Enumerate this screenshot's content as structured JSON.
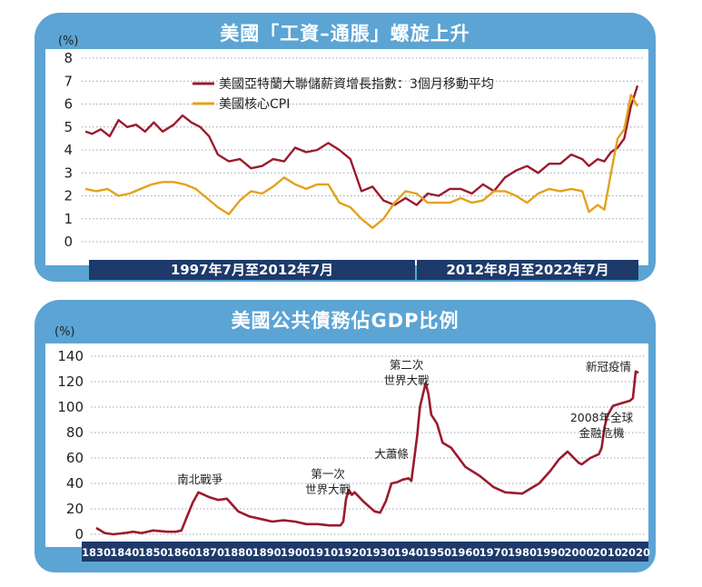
{
  "chart_data": [
    {
      "type": "line",
      "title": "美國「工資–通脹」螺旋上升",
      "ylabel": "(%)",
      "ylim": [
        0,
        8
      ],
      "yticks": [
        0,
        1,
        2,
        3,
        4,
        5,
        6,
        7,
        8
      ],
      "period_labels": [
        "1997年7月至2012年7月",
        "2012年8月至2022年7月"
      ],
      "legend_placement": "top-center",
      "series": [
        {
          "name": "美國亞特蘭大聯儲薪資增長指數：3個月移動平均",
          "color": "#9b1b2c",
          "x": [
            1997.5,
            1997.8,
            1998.2,
            1998.6,
            1999.0,
            1999.4,
            1999.8,
            2000.2,
            2000.6,
            2001.0,
            2001.5,
            2001.9,
            2002.3,
            2002.7,
            2003.1,
            2003.5,
            2004.0,
            2004.5,
            2005.0,
            2005.5,
            2006.0,
            2006.5,
            2007.0,
            2007.5,
            2008.0,
            2008.5,
            2009.0,
            2009.5,
            2010.0,
            2010.5,
            2011.0,
            2011.5,
            2012.0,
            2012.5,
            2013.0,
            2013.5,
            2014.0,
            2014.5,
            2015.0,
            2015.5,
            2016.0,
            2016.5,
            2017.0,
            2017.5,
            2018.0,
            2018.5,
            2019.0,
            2019.5,
            2020.0,
            2020.3,
            2020.7,
            2021.0,
            2021.3,
            2021.6,
            2021.9,
            2022.2,
            2022.5
          ],
          "y": [
            4.8,
            4.7,
            4.9,
            4.6,
            5.3,
            5.0,
            5.1,
            4.8,
            5.2,
            4.8,
            5.1,
            5.5,
            5.2,
            5.0,
            4.6,
            3.8,
            3.5,
            3.6,
            3.2,
            3.3,
            3.6,
            3.5,
            4.1,
            3.9,
            4.0,
            4.3,
            4.0,
            3.6,
            2.2,
            2.4,
            1.8,
            1.6,
            1.9,
            1.6,
            2.1,
            2.0,
            2.3,
            2.3,
            2.1,
            2.5,
            2.2,
            2.8,
            3.1,
            3.3,
            3.0,
            3.4,
            3.4,
            3.8,
            3.6,
            3.3,
            3.6,
            3.5,
            3.9,
            4.1,
            4.5,
            5.9,
            6.8
          ]
        },
        {
          "name": "美國核心CPI",
          "color": "#e3a21b",
          "x": [
            1997.5,
            1998.0,
            1998.5,
            1999.0,
            1999.5,
            2000.0,
            2000.5,
            2001.0,
            2001.5,
            2002.0,
            2002.5,
            2003.0,
            2003.5,
            2004.0,
            2004.5,
            2005.0,
            2005.5,
            2006.0,
            2006.5,
            2007.0,
            2007.5,
            2008.0,
            2008.5,
            2009.0,
            2009.5,
            2010.0,
            2010.5,
            2011.0,
            2011.5,
            2012.0,
            2012.5,
            2013.0,
            2013.5,
            2014.0,
            2014.5,
            2015.0,
            2015.5,
            2016.0,
            2016.5,
            2017.0,
            2017.5,
            2018.0,
            2018.5,
            2019.0,
            2019.5,
            2020.0,
            2020.3,
            2020.7,
            2021.0,
            2021.3,
            2021.6,
            2021.9,
            2022.2,
            2022.5
          ],
          "y": [
            2.3,
            2.2,
            2.3,
            2.0,
            2.1,
            2.3,
            2.5,
            2.6,
            2.6,
            2.5,
            2.3,
            1.9,
            1.5,
            1.2,
            1.8,
            2.2,
            2.1,
            2.4,
            2.8,
            2.5,
            2.3,
            2.5,
            2.5,
            1.7,
            1.5,
            1.0,
            0.6,
            1.0,
            1.7,
            2.2,
            2.1,
            1.7,
            1.7,
            1.7,
            1.9,
            1.7,
            1.8,
            2.2,
            2.2,
            2.0,
            1.7,
            2.1,
            2.3,
            2.2,
            2.3,
            2.2,
            1.3,
            1.6,
            1.4,
            3.0,
            4.5,
            4.9,
            6.4,
            5.9
          ]
        }
      ]
    },
    {
      "type": "line",
      "title": "美國公共債務佔GDP比例",
      "ylabel": "(%)",
      "ylim": [
        0,
        140
      ],
      "yticks": [
        0,
        20,
        40,
        60,
        80,
        100,
        120,
        140
      ],
      "xlim": [
        1830,
        2020
      ],
      "xticks": [
        "1830",
        "1840",
        "1850",
        "1860",
        "1870",
        "1880",
        "1890",
        "1900",
        "1910",
        "1920",
        "1930",
        "1940",
        "1950",
        "1960",
        "1970",
        "1980",
        "1990",
        "2000",
        "2010",
        "2020"
      ],
      "annotations": [
        {
          "label": "南北戰爭",
          "x": 1864
        },
        {
          "label": "第一次\n世界大戰",
          "x": 1918
        },
        {
          "label": "大蕭條",
          "x": 1934
        },
        {
          "label": "第二次\n世界大戰",
          "x": 1946
        },
        {
          "label": "2008年全球\n金融危機",
          "x": 2008
        },
        {
          "label": "新冠疫情",
          "x": 2020
        }
      ],
      "series": [
        {
          "name": "美國公共債務佔GDP比例",
          "color": "#9b1b2c",
          "x": [
            1830,
            1833,
            1836,
            1840,
            1843,
            1846,
            1850,
            1855,
            1858,
            1860,
            1862,
            1864,
            1866,
            1867,
            1870,
            1873,
            1876,
            1880,
            1884,
            1888,
            1892,
            1896,
            1900,
            1904,
            1908,
            1912,
            1916,
            1917,
            1918,
            1919,
            1920,
            1921,
            1924,
            1928,
            1930,
            1932,
            1934,
            1936,
            1938,
            1940,
            1941,
            1943,
            1944,
            1946,
            1947,
            1948,
            1950,
            1952,
            1955,
            1960,
            1965,
            1970,
            1974,
            1980,
            1983,
            1986,
            1990,
            1993,
            1996,
            2000,
            2001,
            2004,
            2007,
            2008,
            2009,
            2010,
            2012,
            2015,
            2018,
            2019,
            2020,
            2021
          ],
          "y": [
            5,
            1,
            0,
            1,
            2,
            1,
            3,
            2,
            2,
            3,
            14,
            25,
            33,
            32,
            29,
            27,
            28,
            18,
            14,
            12,
            10,
            11,
            10,
            8,
            8,
            7,
            7,
            10,
            28,
            35,
            31,
            33,
            26,
            18,
            17,
            26,
            40,
            41,
            43,
            44,
            42,
            77,
            100,
            119,
            110,
            94,
            87,
            72,
            68,
            53,
            46,
            37,
            33,
            32,
            36,
            40,
            50,
            59,
            65,
            56,
            55,
            60,
            63,
            68,
            84,
            93,
            101,
            103,
            105,
            107,
            128,
            127
          ]
        }
      ]
    }
  ]
}
